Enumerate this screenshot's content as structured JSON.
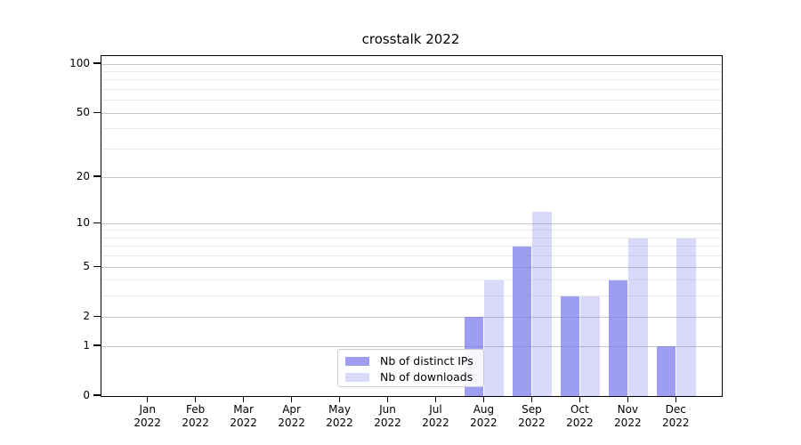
{
  "chart_data": {
    "type": "bar",
    "title": "crosstalk 2022",
    "months": [
      "Jan",
      "Feb",
      "Mar",
      "Apr",
      "May",
      "Jun",
      "Jul",
      "Aug",
      "Sep",
      "Oct",
      "Nov",
      "Dec"
    ],
    "year_label": "2022",
    "series": [
      {
        "name": "Nb of distinct IPs",
        "color": "rgba(120,120,235,0.72)",
        "values": [
          0,
          0,
          0,
          0,
          0,
          0,
          0,
          2,
          7,
          3,
          4,
          1
        ]
      },
      {
        "name": "Nb of downloads",
        "color": "rgba(120,120,235,0.28)",
        "values": [
          0,
          0,
          0,
          0,
          0,
          0,
          0,
          4,
          12,
          3,
          8,
          8
        ]
      }
    ],
    "y_axis": {
      "scale": "log1p",
      "ticks": [
        0,
        1,
        2,
        5,
        10,
        20,
        50,
        100
      ],
      "minor_ticks": [
        3,
        4,
        6,
        7,
        8,
        9,
        30,
        40,
        60,
        70,
        80,
        90
      ],
      "max": 112
    },
    "x_axis": {
      "tick_label_year_on_second_line": true
    },
    "grid": true,
    "legend_position": "bottom-center-inside",
    "style": {
      "grid_major_color": "#c6c6c6",
      "grid_minor_color": "#ebebeb",
      "axis_color": "#000000",
      "background": "#ffffff"
    }
  }
}
